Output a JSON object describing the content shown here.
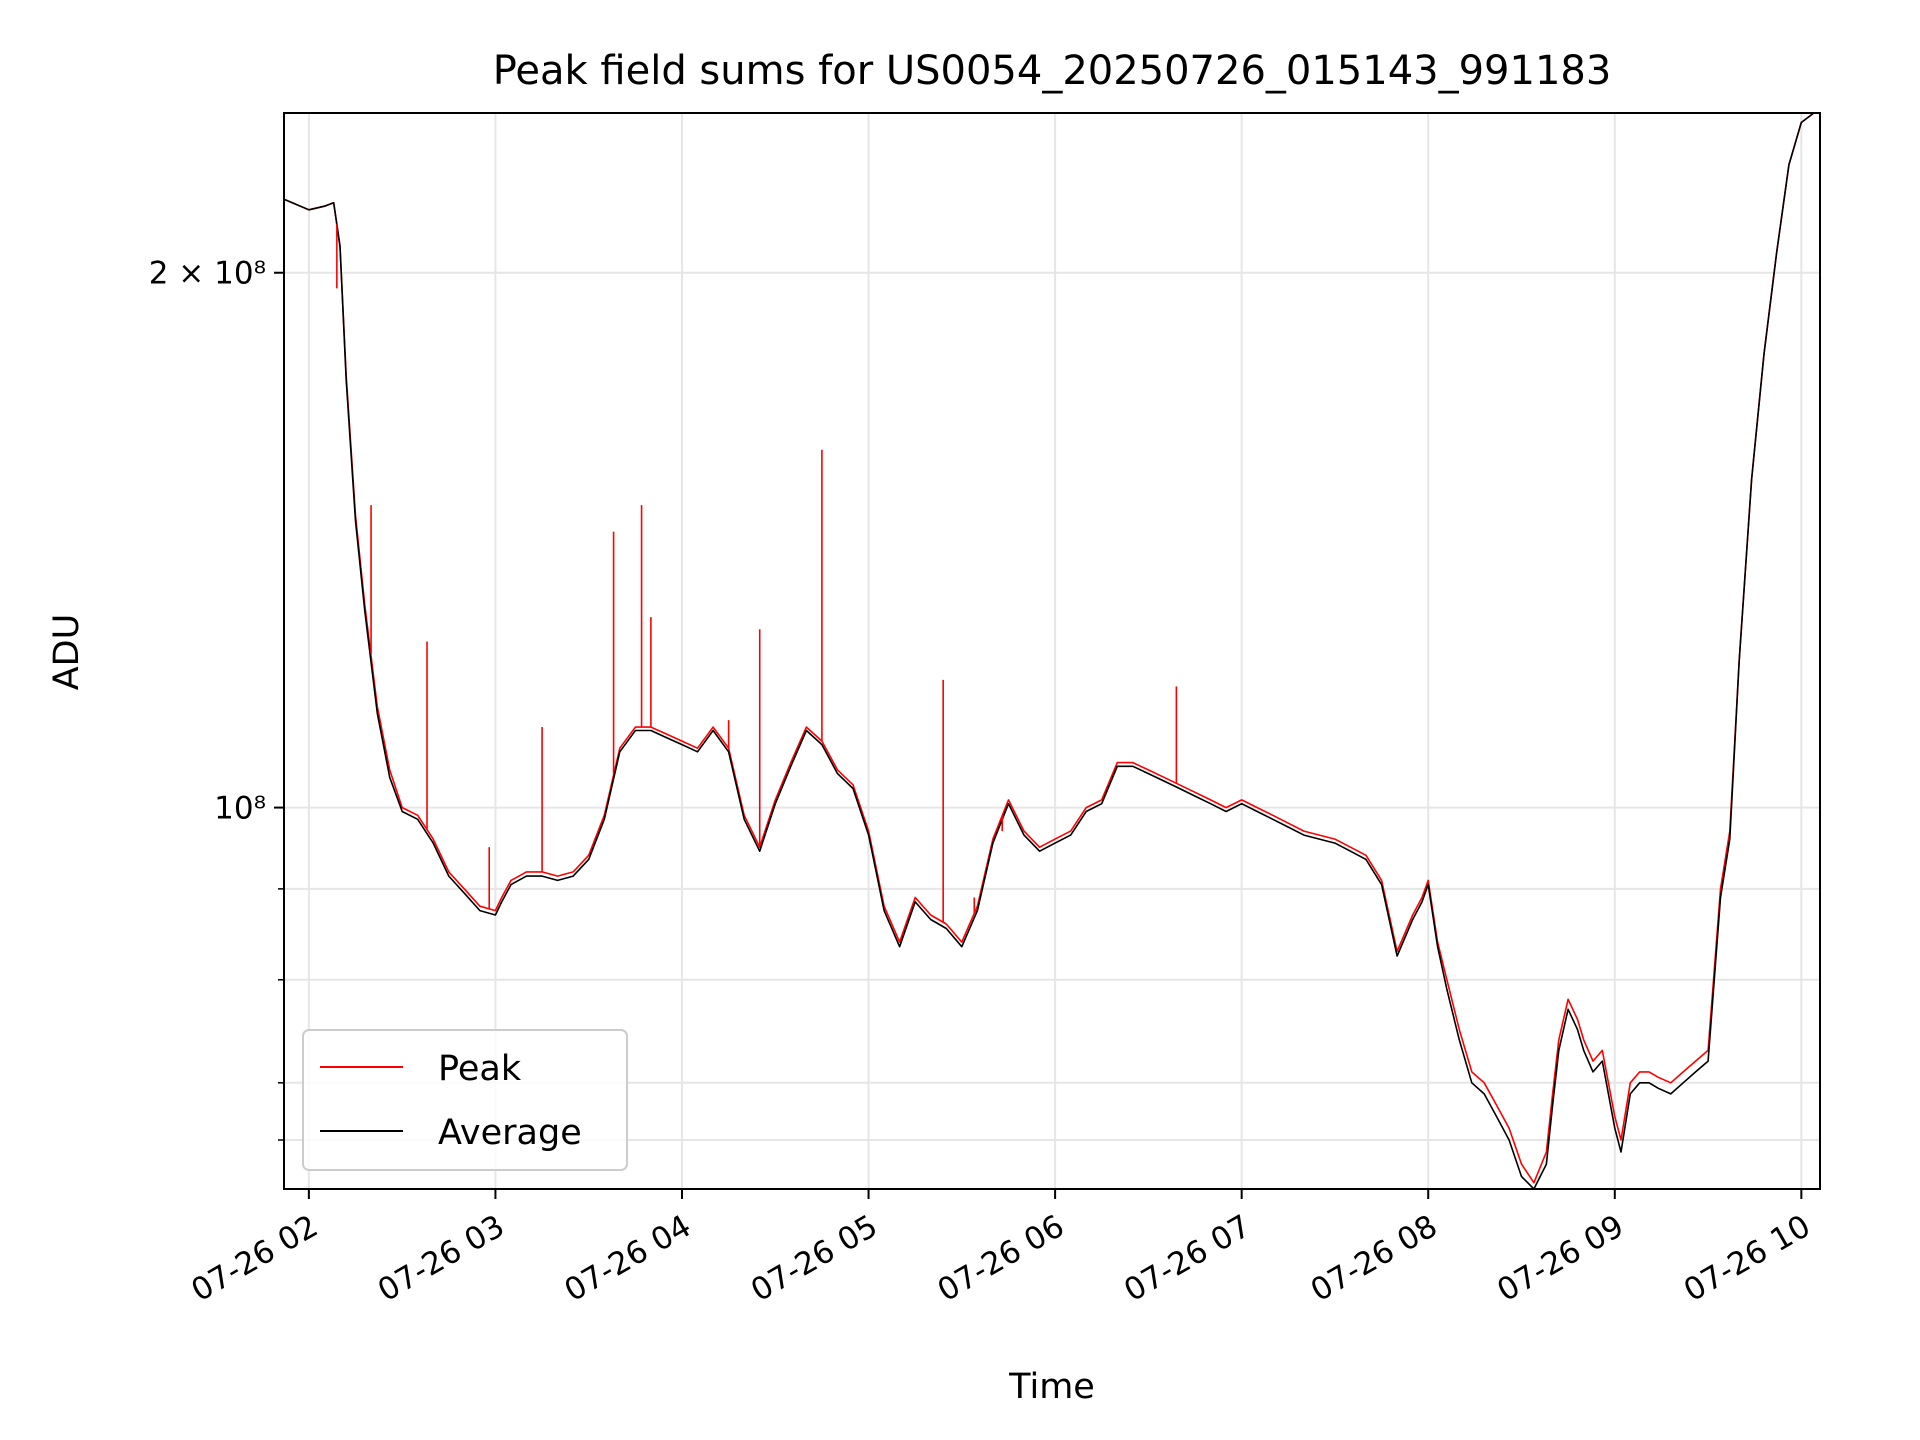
{
  "chart_data": {
    "type": "line",
    "title": "Peak field sums for US0054_20250726_015143_991183",
    "xlabel": "Time",
    "ylabel": "ADU",
    "x_ticks": [
      "07-26 02",
      "07-26 03",
      "07-26 04",
      "07-26 05",
      "07-26 06",
      "07-26 07",
      "07-26 08",
      "07-26 09",
      "07-26 10"
    ],
    "y_tick_labels": {
      "major_2e8": "2 × 10⁸",
      "major_1e8": "10⁸"
    },
    "y_scale": "log",
    "xlim": [
      "2025-07-26 01:52",
      "2025-07-26 10:06"
    ],
    "ylim": [
      61000000,
      246000000
    ],
    "grid": true,
    "legend_position": "lower-left",
    "colors": {
      "Peak": "#ff0000",
      "Average": "#000000"
    },
    "x": [
      "01:52",
      "02:00",
      "02:05",
      "02:08",
      "02:10",
      "02:12",
      "02:15",
      "02:18",
      "02:22",
      "02:26",
      "02:30",
      "02:35",
      "02:40",
      "02:45",
      "02:50",
      "02:55",
      "03:00",
      "03:02",
      "03:05",
      "03:10",
      "03:15",
      "03:20",
      "03:25",
      "03:30",
      "03:35",
      "03:40",
      "03:45",
      "03:50",
      "03:55",
      "04:00",
      "04:05",
      "04:10",
      "04:15",
      "04:20",
      "04:25",
      "04:30",
      "04:35",
      "04:40",
      "04:45",
      "04:50",
      "04:55",
      "05:00",
      "05:05",
      "05:10",
      "05:15",
      "05:20",
      "05:25",
      "05:30",
      "05:35",
      "05:40",
      "05:45",
      "05:50",
      "05:55",
      "06:00",
      "06:05",
      "06:10",
      "06:15",
      "06:20",
      "06:25",
      "06:30",
      "06:35",
      "06:40",
      "06:45",
      "06:50",
      "06:55",
      "07:00",
      "07:05",
      "07:10",
      "07:15",
      "07:20",
      "07:25",
      "07:30",
      "07:35",
      "07:40",
      "07:45",
      "07:50",
      "07:55",
      "07:58",
      "08:00",
      "08:03",
      "08:06",
      "08:10",
      "08:14",
      "08:18",
      "08:22",
      "08:26",
      "08:30",
      "08:34",
      "08:38",
      "08:40",
      "08:42",
      "08:45",
      "08:48",
      "08:50",
      "08:53",
      "08:56",
      "09:00",
      "09:02",
      "09:05",
      "09:08",
      "09:11",
      "09:14",
      "09:18",
      "09:22",
      "09:26",
      "09:30",
      "09:34",
      "09:37",
      "09:40",
      "09:44",
      "09:48",
      "09:52",
      "09:56",
      "10:00",
      "10:04",
      "10:06"
    ],
    "series": [
      {
        "name": "Peak",
        "values": [
          220,
          217,
          218,
          219,
          207,
          175,
          146,
          130,
          114,
          105,
          100,
          99,
          96,
          92,
          90,
          88,
          87.5,
          89,
          91,
          92,
          92,
          91.5,
          92,
          94,
          99,
          108,
          111,
          111,
          110,
          109,
          108,
          111,
          108,
          99,
          95,
          101,
          106,
          111,
          109,
          105,
          103,
          97,
          88,
          84,
          89,
          87,
          86,
          84,
          88,
          96,
          101,
          97,
          95,
          96,
          97,
          100,
          101,
          106,
          106,
          105,
          104,
          103,
          102,
          101,
          100,
          101,
          100,
          99,
          98,
          97,
          96.5,
          96,
          95,
          94,
          91,
          83,
          87,
          89,
          91,
          84,
          80,
          75,
          71,
          70,
          68,
          66,
          63,
          61.5,
          64,
          69,
          74,
          78,
          76,
          74,
          72,
          73,
          67,
          65,
          70,
          71,
          71,
          70.5,
          70,
          71,
          72,
          73,
          90,
          97,
          121,
          153,
          180,
          205,
          230,
          243,
          246,
          246
        ]
      },
      {
        "name": "Average",
        "values": [
          220,
          217,
          218,
          219,
          207,
          174,
          145,
          129,
          113,
          104,
          99.5,
          98.5,
          95.5,
          91.5,
          89.5,
          87.5,
          87,
          88.5,
          90.5,
          91.5,
          91.5,
          91,
          91.5,
          93.5,
          98.5,
          107.5,
          110.5,
          110.5,
          109.5,
          108.5,
          107.5,
          110.5,
          107.5,
          98.5,
          94.5,
          100.5,
          105.5,
          110.5,
          108.5,
          104.5,
          102.5,
          96.5,
          87.5,
          83.5,
          88.5,
          86.5,
          85.5,
          83.5,
          87.5,
          95.5,
          100.5,
          96.5,
          94.5,
          95.5,
          96.5,
          99.5,
          100.5,
          105.5,
          105.5,
          104.5,
          103.5,
          102.5,
          101.5,
          100.5,
          99.5,
          100.5,
          99.5,
          98.5,
          97.5,
          96.5,
          96,
          95.5,
          94.5,
          93.5,
          90.5,
          82.5,
          86.5,
          88.5,
          90.5,
          83.5,
          79,
          74,
          70,
          69,
          67,
          65,
          62,
          61,
          63,
          68,
          73,
          77,
          75,
          73,
          71,
          72,
          66,
          64,
          69,
          70,
          70,
          69.5,
          69,
          70,
          71,
          72,
          89,
          96,
          121,
          153,
          180,
          205,
          230,
          243,
          246,
          246
        ]
      }
    ],
    "spikes": {
      "series": "Peak",
      "points": [
        {
          "x": "02:09",
          "y": 196
        },
        {
          "x": "02:20",
          "y": 148
        },
        {
          "x": "02:38",
          "y": 124
        },
        {
          "x": "02:58",
          "y": 95
        },
        {
          "x": "03:15",
          "y": 111
        },
        {
          "x": "03:38",
          "y": 143
        },
        {
          "x": "03:47",
          "y": 148
        },
        {
          "x": "03:50",
          "y": 128
        },
        {
          "x": "04:15",
          "y": 112
        },
        {
          "x": "04:25",
          "y": 126
        },
        {
          "x": "04:45",
          "y": 159
        },
        {
          "x": "05:24",
          "y": 118
        },
        {
          "x": "05:34",
          "y": 89
        },
        {
          "x": "05:43",
          "y": 97
        },
        {
          "x": "06:39",
          "y": 117
        }
      ]
    }
  }
}
